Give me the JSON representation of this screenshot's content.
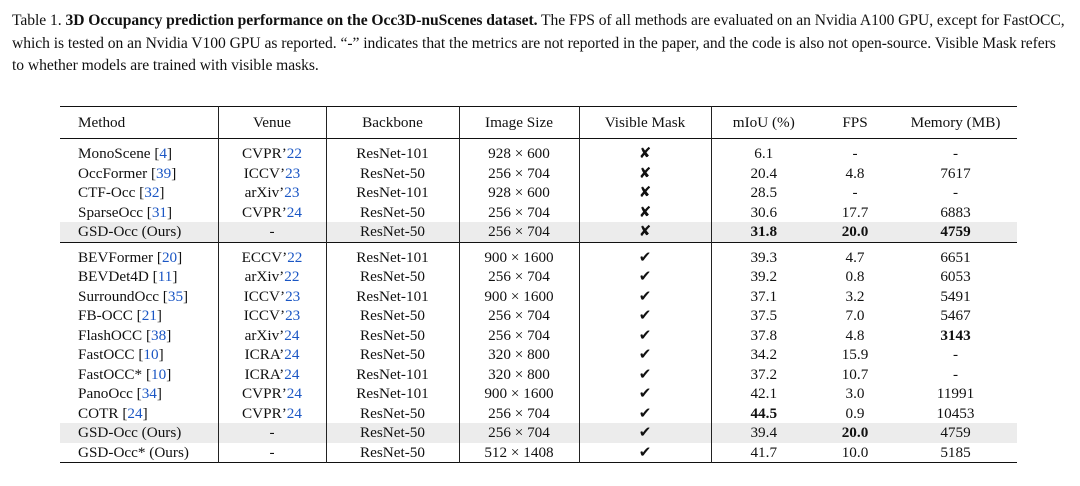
{
  "caption": {
    "label": "Table 1.",
    "title": "3D Occupancy prediction performance on the Occ3D-nuScenes dataset.",
    "text": "The FPS of all methods are evaluated on an Nvidia A100 GPU, except for FastOCC, which is tested on an Nvidia V100 GPU as reported. “-” indicates that the metrics are not reported in the paper, and the code is also not open-source. Visible Mask refers to whether models are trained with visible masks."
  },
  "headers": [
    "Method",
    "Venue",
    "Backbone",
    "Image Size",
    "Visible Mask",
    "mIoU (%)",
    "FPS",
    "Memory (MB)"
  ],
  "group1": [
    {
      "method": "MonoScene",
      "ref": "4",
      "venue_pre": "CVPR’",
      "venue_yr": "22",
      "backbone": "ResNet-101",
      "size": "928 × 600",
      "mask": "✘",
      "miou": "6.1",
      "fps": "-",
      "mem": "-"
    },
    {
      "method": "OccFormer",
      "ref": "39",
      "venue_pre": "ICCV’",
      "venue_yr": "23",
      "backbone": "ResNet-50",
      "size": "256 × 704",
      "mask": "✘",
      "miou": "20.4",
      "fps": "4.8",
      "mem": "7617"
    },
    {
      "method": "CTF-Occ",
      "ref": "32",
      "venue_pre": "arXiv’",
      "venue_yr": "23",
      "backbone": "ResNet-101",
      "size": "928 × 600",
      "mask": "✘",
      "miou": "28.5",
      "fps": "-",
      "mem": "-"
    },
    {
      "method": "SparseOcc",
      "ref": "31",
      "venue_pre": "CVPR’",
      "venue_yr": "24",
      "backbone": "ResNet-50",
      "size": "256 × 704",
      "mask": "✘",
      "miou": "30.6",
      "fps": "17.7",
      "mem": "6883"
    },
    {
      "method": "GSD-Occ (Ours)",
      "ref": "",
      "venue_pre": "-",
      "venue_yr": "",
      "backbone": "ResNet-50",
      "size": "256 × 704",
      "mask": "✘",
      "miou": "31.8",
      "fps": "20.0",
      "mem": "4759"
    }
  ],
  "group2": [
    {
      "method": "BEVFormer",
      "ref": "20",
      "venue_pre": "ECCV’",
      "venue_yr": "22",
      "backbone": "ResNet-101",
      "size": "900 × 1600",
      "mask": "✔",
      "miou": "39.3",
      "fps": "4.7",
      "mem": "6651"
    },
    {
      "method": "BEVDet4D",
      "ref": "11",
      "venue_pre": "arXiv’",
      "venue_yr": "22",
      "backbone": "ResNet-50",
      "size": "256 × 704",
      "mask": "✔",
      "miou": "39.2",
      "fps": "0.8",
      "mem": "6053"
    },
    {
      "method": "SurroundOcc",
      "ref": "35",
      "venue_pre": "ICCV’",
      "venue_yr": "23",
      "backbone": "ResNet-101",
      "size": "900 × 1600",
      "mask": "✔",
      "miou": "37.1",
      "fps": "3.2",
      "mem": "5491"
    },
    {
      "method": "FB-OCC",
      "ref": "21",
      "venue_pre": "ICCV’",
      "venue_yr": "23",
      "backbone": "ResNet-50",
      "size": "256 × 704",
      "mask": "✔",
      "miou": "37.5",
      "fps": "7.0",
      "mem": "5467"
    },
    {
      "method": "FlashOCC",
      "ref": "38",
      "venue_pre": "arXiv’",
      "venue_yr": "24",
      "backbone": "ResNet-50",
      "size": "256 × 704",
      "mask": "✔",
      "miou": "37.8",
      "fps": "4.8",
      "mem": "3143"
    },
    {
      "method": "FastOCC",
      "ref": "10",
      "venue_pre": "ICRA’",
      "venue_yr": "24",
      "backbone": "ResNet-50",
      "size": "320 × 800",
      "mask": "✔",
      "miou": "34.2",
      "fps": "15.9",
      "mem": "-"
    },
    {
      "method": "FastOCC*",
      "ref": "10",
      "venue_pre": "ICRA’",
      "venue_yr": "24",
      "backbone": "ResNet-101",
      "size": "320 × 800",
      "mask": "✔",
      "miou": "37.2",
      "fps": "10.7",
      "mem": "-"
    },
    {
      "method": "PanoOcc",
      "ref": "34",
      "venue_pre": "CVPR’",
      "venue_yr": "24",
      "backbone": "ResNet-101",
      "size": "900 × 1600",
      "mask": "✔",
      "miou": "42.1",
      "fps": "3.0",
      "mem": "11991"
    },
    {
      "method": "COTR",
      "ref": "24",
      "venue_pre": "CVPR’",
      "venue_yr": "24",
      "backbone": "ResNet-50",
      "size": "256 × 704",
      "mask": "✔",
      "miou": "44.5",
      "fps": "0.9",
      "mem": "10453"
    },
    {
      "method": "GSD-Occ (Ours)",
      "ref": "",
      "venue_pre": "-",
      "venue_yr": "",
      "backbone": "ResNet-50",
      "size": "256 × 704",
      "mask": "✔",
      "miou": "39.4",
      "fps": "20.0",
      "mem": "4759"
    },
    {
      "method": "GSD-Occ* (Ours)",
      "ref": "",
      "venue_pre": "-",
      "venue_yr": "",
      "backbone": "ResNet-50",
      "size": "512 × 1408",
      "mask": "✔",
      "miou": "41.7",
      "fps": "10.0",
      "mem": "5185"
    }
  ]
}
